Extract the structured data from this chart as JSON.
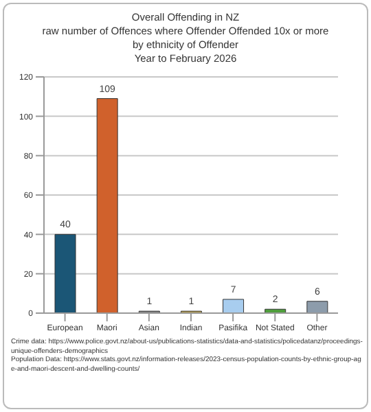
{
  "chart_data": {
    "type": "bar",
    "title": "Overall Offending in NZ\nraw number of Offences where Offender Offended 10x or more\nby ethnicity of Offender\nYear to February 2026",
    "categories": [
      "European",
      "Maori",
      "Asian",
      "Indian",
      "Pasifika",
      "Not Stated",
      "Other"
    ],
    "values": [
      40,
      109,
      1,
      1,
      7,
      2,
      6
    ],
    "colors": [
      "#1b5676",
      "#d0612c",
      "#7f7f7f",
      "#b59a45",
      "#a8cdef",
      "#4f9e3c",
      "#8d9cab"
    ],
    "ylim": [
      0,
      120
    ],
    "yticks": [
      0,
      20,
      40,
      60,
      80,
      100,
      120
    ],
    "grid": "y",
    "data_labels": true,
    "annotations": [
      "Crime data: https://www.police.govt.nz/about-us/publications-statistics/data-and-statistics/policedatanz/proceedings-unique-offenders-demographics",
      "Population Data: https://www.stats.govt.nz/information-releases/2023-census-population-counts-by-ethnic-group-age-and-maori-descent-and-dwelling-counts/"
    ]
  }
}
